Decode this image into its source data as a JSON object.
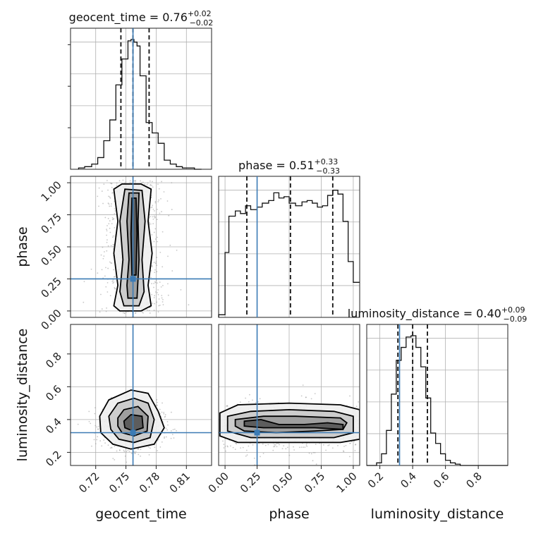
{
  "chart_data": {
    "type": "corner",
    "parameters": [
      "geocent_time",
      "phase",
      "luminosity_distance"
    ],
    "truths": {
      "geocent_time": 0.757,
      "phase": 0.25,
      "luminosity_distance": 0.32
    },
    "colors": {
      "truth": "#3b7bb5",
      "line": "#111111",
      "grid": "#b0b0b0"
    },
    "titles": [
      {
        "param": "geocent_time",
        "prefix": "geocent_time = 0.76",
        "plus": "+0.02",
        "minus": "−0.02"
      },
      {
        "param": "phase",
        "prefix": "phase = 0.51",
        "plus": "+0.33",
        "minus": "−0.33"
      },
      {
        "param": "luminosity_distance",
        "prefix": "luminosity_distance = 0.40",
        "plus": "+0.09",
        "minus": "−0.09"
      }
    ],
    "ranges": {
      "geocent_time": [
        0.695,
        0.835
      ],
      "phase": [
        -0.05,
        1.05
      ],
      "luminosity_distance": [
        0.12,
        0.98
      ]
    },
    "ticks": {
      "geocent_time": {
        "values": [
          0.72,
          0.75,
          0.78,
          0.81
        ],
        "labels": [
          "0.72",
          "0.75",
          "0.78",
          "0.81"
        ]
      },
      "phase": {
        "values": [
          0.0,
          0.25,
          0.5,
          0.75,
          1.0
        ],
        "labels": [
          "0.00",
          "0.25",
          "0.50",
          "0.75",
          "1.00"
        ]
      },
      "luminosity_distance": {
        "values": [
          0.2,
          0.4,
          0.6,
          0.8
        ],
        "labels": [
          "0.2",
          "0.4",
          "0.6",
          "0.8"
        ]
      }
    },
    "histograms": {
      "geocent_time": {
        "edges": [
          0.703,
          0.709,
          0.716,
          0.722,
          0.728,
          0.734,
          0.74,
          0.746,
          0.752,
          0.755,
          0.758,
          0.761,
          0.764,
          0.77,
          0.776,
          0.782,
          0.788,
          0.794,
          0.8,
          0.806,
          0.812,
          0.818,
          0.825
        ],
        "counts": [
          0.01,
          0.02,
          0.04,
          0.09,
          0.22,
          0.38,
          0.65,
          0.85,
          0.99,
          1.0,
          0.98,
          0.95,
          0.72,
          0.36,
          0.28,
          0.2,
          0.07,
          0.04,
          0.02,
          0.01,
          0.01,
          0.0
        ],
        "quantiles": [
          0.745,
          0.757,
          0.773
        ]
      },
      "phase": {
        "edges": [
          -0.05,
          0.0,
          0.03,
          0.08,
          0.12,
          0.16,
          0.2,
          0.25,
          0.29,
          0.34,
          0.38,
          0.42,
          0.46,
          0.5,
          0.55,
          0.6,
          0.64,
          0.68,
          0.72,
          0.76,
          0.8,
          0.84,
          0.88,
          0.92,
          0.96,
          1.0,
          1.05
        ],
        "counts": [
          0.02,
          0.5,
          0.78,
          0.82,
          0.8,
          0.86,
          0.83,
          0.85,
          0.88,
          0.9,
          0.96,
          0.92,
          0.93,
          0.88,
          0.86,
          0.89,
          0.9,
          0.88,
          0.85,
          0.86,
          0.94,
          0.98,
          0.95,
          0.74,
          0.43,
          0.27
        ],
        "quantiles": [
          0.17,
          0.51,
          0.84
        ]
      },
      "luminosity_distance": {
        "edges": [
          0.12,
          0.15,
          0.18,
          0.21,
          0.24,
          0.27,
          0.3,
          0.33,
          0.36,
          0.39,
          0.42,
          0.45,
          0.48,
          0.51,
          0.54,
          0.57,
          0.6,
          0.63,
          0.66,
          0.69,
          0.72,
          0.98
        ],
        "counts": [
          0.0,
          0.0,
          0.02,
          0.09,
          0.27,
          0.55,
          0.81,
          0.91,
          0.99,
          1.0,
          0.91,
          0.76,
          0.52,
          0.25,
          0.17,
          0.09,
          0.04,
          0.02,
          0.01,
          0.0,
          0.0
        ],
        "quantiles": [
          0.31,
          0.4,
          0.49
        ]
      }
    },
    "contours_2d": [
      {
        "x": "geocent_time",
        "y": "phase",
        "levels": [
          [
            [
              0.744,
              0.0
            ],
            [
              0.765,
              0.0
            ],
            [
              0.775,
              0.04
            ],
            [
              0.772,
              0.2
            ],
            [
              0.776,
              0.45
            ],
            [
              0.772,
              0.7
            ],
            [
              0.775,
              0.95
            ],
            [
              0.765,
              0.99
            ],
            [
              0.746,
              0.99
            ],
            [
              0.738,
              0.95
            ],
            [
              0.742,
              0.7
            ],
            [
              0.738,
              0.45
            ],
            [
              0.742,
              0.2
            ],
            [
              0.738,
              0.04
            ]
          ],
          [
            [
              0.748,
              0.04
            ],
            [
              0.763,
              0.04
            ],
            [
              0.768,
              0.15
            ],
            [
              0.766,
              0.4
            ],
            [
              0.769,
              0.7
            ],
            [
              0.766,
              0.94
            ],
            [
              0.749,
              0.95
            ],
            [
              0.744,
              0.7
            ],
            [
              0.747,
              0.4
            ],
            [
              0.744,
              0.15
            ]
          ],
          [
            [
              0.752,
              0.1
            ],
            [
              0.761,
              0.1
            ],
            [
              0.763,
              0.4
            ],
            [
              0.762,
              0.7
            ],
            [
              0.763,
              0.92
            ],
            [
              0.753,
              0.92
            ],
            [
              0.751,
              0.7
            ],
            [
              0.753,
              0.4
            ],
            [
              0.751,
              0.2
            ]
          ],
          [
            [
              0.756,
              0.28
            ],
            [
              0.76,
              0.28
            ],
            [
              0.761,
              0.6
            ],
            [
              0.76,
              0.88
            ],
            [
              0.756,
              0.88
            ],
            [
              0.755,
              0.6
            ]
          ]
        ]
      },
      {
        "x": "geocent_time",
        "y": "luminosity_distance",
        "levels": [
          [
            [
              0.724,
              0.42
            ],
            [
              0.733,
              0.52
            ],
            [
              0.755,
              0.58
            ],
            [
              0.772,
              0.56
            ],
            [
              0.782,
              0.45
            ],
            [
              0.788,
              0.35
            ],
            [
              0.778,
              0.25
            ],
            [
              0.755,
              0.22
            ],
            [
              0.737,
              0.25
            ],
            [
              0.725,
              0.32
            ]
          ],
          [
            [
              0.733,
              0.42
            ],
            [
              0.742,
              0.5
            ],
            [
              0.758,
              0.53
            ],
            [
              0.772,
              0.5
            ],
            [
              0.778,
              0.4
            ],
            [
              0.774,
              0.29
            ],
            [
              0.758,
              0.26
            ],
            [
              0.743,
              0.28
            ],
            [
              0.735,
              0.34
            ]
          ],
          [
            [
              0.742,
              0.41
            ],
            [
              0.748,
              0.46
            ],
            [
              0.762,
              0.48
            ],
            [
              0.772,
              0.42
            ],
            [
              0.771,
              0.33
            ],
            [
              0.758,
              0.3
            ],
            [
              0.746,
              0.32
            ],
            [
              0.742,
              0.36
            ]
          ],
          [
            [
              0.748,
              0.39
            ],
            [
              0.755,
              0.43
            ],
            [
              0.766,
              0.42
            ],
            [
              0.767,
              0.35
            ],
            [
              0.757,
              0.33
            ],
            [
              0.749,
              0.35
            ]
          ]
        ]
      },
      {
        "x": "phase",
        "y": "luminosity_distance",
        "levels": [
          [
            [
              -0.04,
              0.44
            ],
            [
              0.1,
              0.49
            ],
            [
              0.5,
              0.5
            ],
            [
              0.9,
              0.49
            ],
            [
              1.05,
              0.46
            ],
            [
              1.05,
              0.28
            ],
            [
              0.9,
              0.26
            ],
            [
              0.5,
              0.26
            ],
            [
              0.1,
              0.26
            ],
            [
              -0.04,
              0.3
            ]
          ],
          [
            [
              0.02,
              0.42
            ],
            [
              0.2,
              0.45
            ],
            [
              0.5,
              0.46
            ],
            [
              0.85,
              0.45
            ],
            [
              1.0,
              0.42
            ],
            [
              1.0,
              0.32
            ],
            [
              0.85,
              0.29
            ],
            [
              0.5,
              0.29
            ],
            [
              0.2,
              0.29
            ],
            [
              0.02,
              0.33
            ]
          ],
          [
            [
              0.08,
              0.4
            ],
            [
              0.3,
              0.42
            ],
            [
              0.55,
              0.42
            ],
            [
              0.9,
              0.41
            ],
            [
              0.95,
              0.38
            ],
            [
              0.92,
              0.34
            ],
            [
              0.7,
              0.33
            ],
            [
              0.4,
              0.32
            ],
            [
              0.15,
              0.33
            ],
            [
              0.08,
              0.36
            ]
          ],
          [
            [
              0.15,
              0.39
            ],
            [
              0.28,
              0.4
            ],
            [
              0.42,
              0.37
            ],
            [
              0.62,
              0.37
            ],
            [
              0.8,
              0.38
            ],
            [
              0.92,
              0.37
            ],
            [
              0.92,
              0.34
            ],
            [
              0.7,
              0.35
            ],
            [
              0.5,
              0.35
            ],
            [
              0.3,
              0.35
            ],
            [
              0.15,
              0.36
            ]
          ]
        ]
      }
    ]
  }
}
